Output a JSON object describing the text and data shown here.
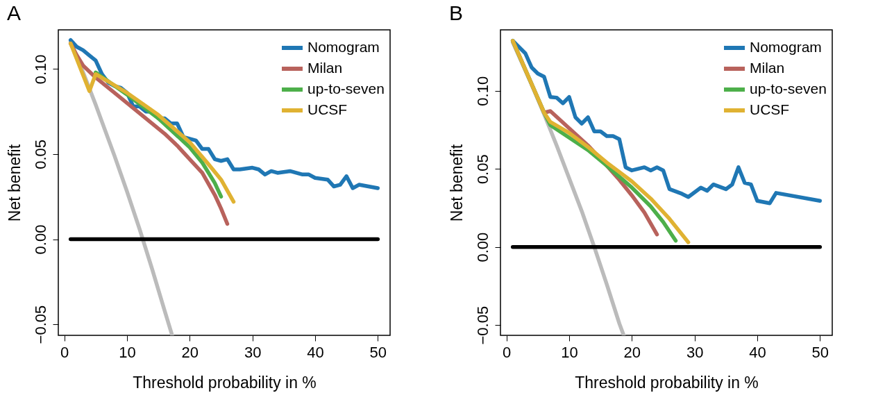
{
  "chart_data": [
    {
      "type": "line",
      "title": "A",
      "xlabel": "Threshold probability in %",
      "ylabel": "Net benefit",
      "xlim": [
        -0.96,
        51.96
      ],
      "ylim": [
        -0.0565,
        0.123
      ],
      "xticks": [
        0,
        10,
        20,
        30,
        40,
        50
      ],
      "yticks": [
        {
          "value": -0.05,
          "label": "−0.05"
        },
        {
          "value": 0,
          "label": "0.00"
        },
        {
          "value": 0.05,
          "label": "0.05"
        },
        {
          "value": 0.1,
          "label": "0.10"
        }
      ],
      "legend": "top right",
      "series": [
        {
          "color": "#bbbbbb",
          "x": [
            1,
            2,
            3,
            4,
            5,
            6,
            8,
            10,
            12,
            14,
            16,
            17.2
          ],
          "values": [
            0.116,
            0.107,
            0.098,
            0.0885,
            0.079,
            0.069,
            0.049,
            0.028,
            0.006,
            -0.0175,
            -0.042,
            -0.0565
          ]
        },
        {
          "color": "#000000",
          "x": [
            1,
            50
          ],
          "values": [
            0,
            0
          ]
        },
        {
          "name": "Nomogram",
          "color": "#1f77b4",
          "x": [
            1,
            2,
            3,
            4,
            5,
            6,
            7,
            8,
            9,
            10,
            11,
            12,
            13,
            14,
            15,
            16,
            17,
            18,
            19,
            20,
            21,
            22,
            23,
            24,
            25,
            26,
            27,
            28,
            30,
            31,
            32,
            33,
            34,
            36,
            38,
            39,
            40,
            42,
            43,
            44,
            45,
            46,
            47,
            50
          ],
          "values": [
            0.117,
            0.113,
            0.111,
            0.108,
            0.105,
            0.097,
            0.092,
            0.09,
            0.089,
            0.086,
            0.078,
            0.078,
            0.075,
            0.075,
            0.071,
            0.071,
            0.068,
            0.068,
            0.06,
            0.059,
            0.058,
            0.053,
            0.053,
            0.047,
            0.046,
            0.047,
            0.041,
            0.041,
            0.042,
            0.041,
            0.038,
            0.04,
            0.039,
            0.04,
            0.038,
            0.038,
            0.036,
            0.035,
            0.031,
            0.032,
            0.037,
            0.03,
            0.032,
            0.03
          ]
        },
        {
          "name": "Milan",
          "color": "#b8625c",
          "x": [
            1,
            2,
            3,
            5,
            8,
            10,
            12,
            14,
            16,
            18,
            20,
            22,
            24,
            25,
            26
          ],
          "values": [
            0.115,
            0.108,
            0.102,
            0.095,
            0.086,
            0.08,
            0.074,
            0.068,
            0.062,
            0.055,
            0.047,
            0.039,
            0.026,
            0.018,
            0.009
          ]
        },
        {
          "name": "up-to-seven",
          "color": "#4daf4a",
          "x": [
            5,
            10,
            15,
            20,
            22,
            24,
            25
          ],
          "values": [
            0.098,
            0.085,
            0.071,
            0.054,
            0.045,
            0.033,
            0.025
          ]
        },
        {
          "name": "UCSF",
          "color": "#e0b232",
          "x": [
            1,
            4,
            5,
            10,
            15,
            20,
            23,
            25,
            27
          ],
          "values": [
            0.115,
            0.087,
            0.097,
            0.086,
            0.073,
            0.057,
            0.044,
            0.035,
            0.022
          ]
        }
      ]
    },
    {
      "type": "line",
      "title": "B",
      "xlabel": "Threshold probability in %",
      "ylabel": "Net benefit",
      "xlim": [
        -0.96,
        51.96
      ],
      "ylim": [
        -0.0566,
        0.139
      ],
      "xticks": [
        0,
        10,
        20,
        30,
        40,
        50
      ],
      "yticks": [
        {
          "value": -0.05,
          "label": "−0.05"
        },
        {
          "value": 0,
          "label": "0.00"
        },
        {
          "value": 0.05,
          "label": "0.05"
        },
        {
          "value": 0.1,
          "label": "0.10"
        }
      ],
      "legend": "top right",
      "series": [
        {
          "color": "#bbbbbb",
          "x": [
            1,
            2,
            4,
            6,
            8,
            10,
            12,
            14,
            16,
            18,
            18.7
          ],
          "values": [
            0.131,
            0.122,
            0.104,
            0.085,
            0.065,
            0.044,
            0.023,
            0,
            -0.024,
            -0.049,
            -0.0566
          ]
        },
        {
          "color": "#000000",
          "x": [
            1,
            50
          ],
          "values": [
            0,
            0
          ]
        },
        {
          "name": "Nomogram",
          "color": "#1f77b4",
          "x": [
            1,
            2,
            3,
            4,
            5,
            6,
            7,
            8,
            9,
            10,
            11,
            12,
            13,
            14,
            15,
            16,
            17,
            18,
            19,
            20,
            22,
            23,
            24,
            25,
            26,
            28,
            29,
            31,
            32,
            33,
            35,
            36,
            37,
            38,
            39,
            40,
            42,
            43,
            50
          ],
          "values": [
            0.132,
            0.128,
            0.124,
            0.115,
            0.111,
            0.109,
            0.096,
            0.0956,
            0.092,
            0.096,
            0.083,
            0.079,
            0.083,
            0.074,
            0.074,
            0.071,
            0.071,
            0.069,
            0.051,
            0.049,
            0.051,
            0.049,
            0.051,
            0.049,
            0.037,
            0.034,
            0.032,
            0.038,
            0.036,
            0.04,
            0.037,
            0.04,
            0.051,
            0.041,
            0.04,
            0.0295,
            0.028,
            0.0346,
            0.0295
          ]
        },
        {
          "name": "Milan",
          "color": "#b8625c",
          "x": [
            1,
            6,
            7,
            10,
            13,
            16,
            18,
            20,
            22,
            24
          ],
          "values": [
            0.132,
            0.086,
            0.087,
            0.076,
            0.065,
            0.052,
            0.043,
            0.033,
            0.022,
            0.008
          ]
        },
        {
          "name": "up-to-seven",
          "color": "#4daf4a",
          "x": [
            1,
            6,
            7,
            10,
            13,
            16,
            20,
            23,
            25,
            27
          ],
          "values": [
            0.132,
            0.086,
            0.078,
            0.07,
            0.062,
            0.052,
            0.038,
            0.026,
            0.016,
            0.004
          ]
        },
        {
          "name": "UCSF",
          "color": "#e0b232",
          "x": [
            1,
            6,
            7,
            10,
            13,
            16,
            20,
            23,
            26,
            29
          ],
          "values": [
            0.132,
            0.086,
            0.08,
            0.073,
            0.064,
            0.054,
            0.042,
            0.031,
            0.018,
            0.003
          ]
        }
      ]
    }
  ]
}
